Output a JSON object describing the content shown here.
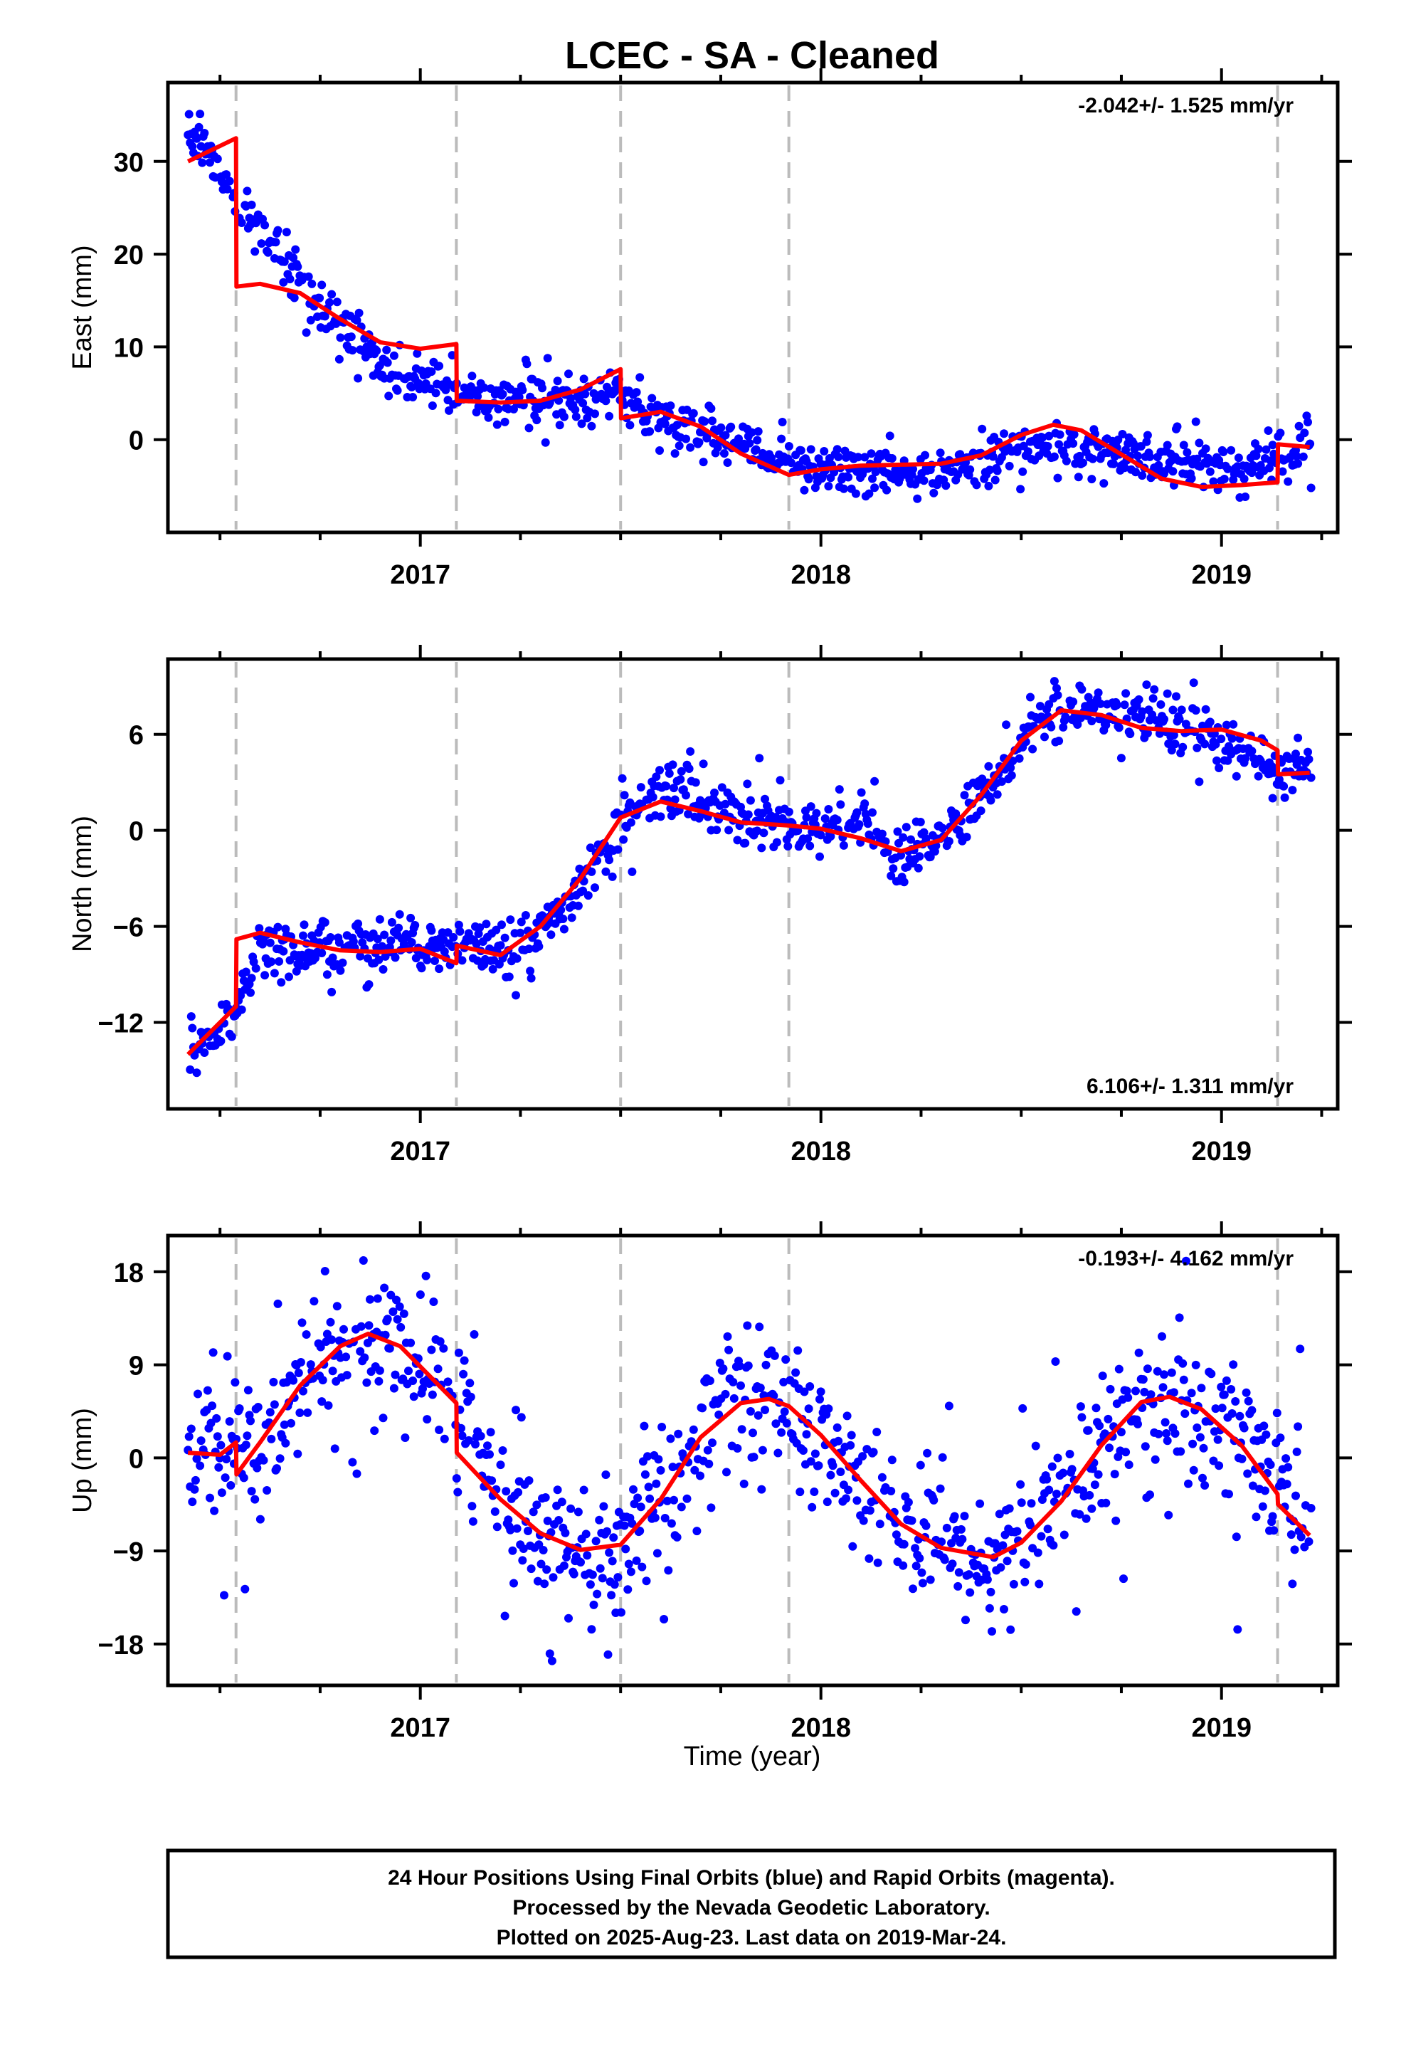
{
  "title": "LCEC  - SA - Cleaned",
  "xlabel": "Time (year)",
  "footer": {
    "lines": [
      "24 Hour Positions Using Final Orbits (blue) and Rapid Orbits (magenta).",
      "Processed by the Nevada Geodetic Laboratory.",
      "Plotted on 2025-Aug-23. Last data on 2019-Mar-24."
    ]
  },
  "colors": {
    "points": "#0000ff",
    "model": "#ff0000",
    "steps": "#bbbbbb",
    "axes": "#000000"
  },
  "chart_data": [
    {
      "type": "scatter",
      "ylabel": "East (mm)",
      "rate": "-2.042+/- 1.525 mm/yr",
      "rate_position": "top-right",
      "xlim": [
        2016.37,
        2019.29
      ],
      "ylim": [
        -10,
        38.5
      ],
      "xticks": [
        2017,
        2018,
        2019
      ],
      "yticks": [
        0,
        10,
        20,
        30
      ],
      "step_epochs": [
        2016.54,
        2017.09,
        2017.5,
        2017.92,
        2019.14
      ],
      "model": {
        "x": [
          2016.42,
          2016.54,
          2016.541,
          2016.6,
          2016.7,
          2016.8,
          2016.9,
          2017.0,
          2017.09,
          2017.091,
          2017.2,
          2017.3,
          2017.4,
          2017.5,
          2017.501,
          2017.6,
          2017.7,
          2017.8,
          2017.92,
          2018.0,
          2018.1,
          2018.2,
          2018.3,
          2018.4,
          2018.5,
          2018.58,
          2018.65,
          2018.75,
          2018.85,
          2018.95,
          2019.05,
          2019.14,
          2019.141,
          2019.22
        ],
        "y": [
          30,
          32.5,
          16.5,
          16.8,
          15.8,
          13,
          10.5,
          9.8,
          10.3,
          4.2,
          4.0,
          4.2,
          5.4,
          7.6,
          2.3,
          3.0,
          1.4,
          -1.5,
          -3.8,
          -3.2,
          -2.8,
          -2.7,
          -2.6,
          -1.7,
          0.5,
          1.6,
          1.0,
          -1.6,
          -4.2,
          -5.1,
          -4.9,
          -4.6,
          -0.5,
          -0.8
        ]
      },
      "trend": {
        "x": [
          2016.42,
          2016.54,
          2016.7,
          2016.9,
          2017.09,
          2017.2,
          2017.35,
          2017.5,
          2017.6,
          2017.75,
          2017.92,
          2018.1,
          2018.3,
          2018.45,
          2018.6,
          2018.75,
          2018.9,
          2019.05,
          2019.14,
          2019.22
        ],
        "y": [
          34,
          26,
          17,
          8,
          5,
          4.2,
          4.0,
          4.5,
          2.2,
          0.5,
          -2.5,
          -3.5,
          -3.3,
          -1.6,
          -0.6,
          -1.6,
          -2.6,
          -3.2,
          -2.2,
          -0.4
        ]
      },
      "scatter": {
        "spread": 1.3,
        "outlier_frac": 0.01,
        "seed": 11
      }
    },
    {
      "type": "scatter",
      "ylabel": "North (mm)",
      "rate": "6.106+/- 1.311 mm/yr",
      "rate_position": "bottom-right",
      "xlim": [
        2016.37,
        2019.29
      ],
      "ylim": [
        -17.4,
        10.7
      ],
      "xticks": [
        2017,
        2018,
        2019
      ],
      "yticks": [
        -12,
        -6,
        0,
        6
      ],
      "step_epochs": [
        2016.54,
        2017.09,
        2017.5,
        2017.92,
        2019.14
      ],
      "model": {
        "x": [
          2016.42,
          2016.54,
          2016.541,
          2016.6,
          2016.7,
          2016.8,
          2016.9,
          2017.0,
          2017.09,
          2017.091,
          2017.2,
          2017.3,
          2017.4,
          2017.5,
          2017.6,
          2017.7,
          2017.8,
          2017.92,
          2018.0,
          2018.1,
          2018.2,
          2018.3,
          2018.4,
          2018.5,
          2018.6,
          2018.7,
          2018.8,
          2018.9,
          2019.0,
          2019.1,
          2019.14,
          2019.141,
          2019.22
        ],
        "y": [
          -14,
          -11,
          -6.8,
          -6.4,
          -7.0,
          -7.5,
          -7.6,
          -7.4,
          -8.3,
          -7.2,
          -7.8,
          -6.0,
          -3.0,
          0.8,
          1.8,
          1.2,
          0.5,
          0.3,
          0.1,
          -0.5,
          -1.3,
          -0.6,
          2.2,
          5.6,
          7.5,
          7.2,
          6.4,
          6.2,
          6.3,
          5.6,
          5.0,
          3.5,
          3.6
        ]
      },
      "trend": {
        "x": [
          2016.42,
          2016.54,
          2016.6,
          2016.8,
          2017.0,
          2017.09,
          2017.2,
          2017.3,
          2017.4,
          2017.5,
          2017.6,
          2017.8,
          2017.95,
          2018.1,
          2018.2,
          2018.3,
          2018.45,
          2018.55,
          2018.7,
          2018.9,
          2019.0,
          2019.14,
          2019.22
        ],
        "y": [
          -14.5,
          -11.5,
          -7.2,
          -7.6,
          -7.2,
          -7.0,
          -7.8,
          -6.5,
          -3.8,
          0,
          2.8,
          0.8,
          0.3,
          0.6,
          -1.8,
          -0.8,
          3.8,
          7.2,
          7.6,
          6.2,
          5.6,
          3.8,
          4.0
        ]
      },
      "scatter": {
        "spread": 0.85,
        "outlier_frac": 0.01,
        "seed": 23
      }
    },
    {
      "type": "scatter",
      "ylabel": "Up (mm)",
      "rate": "-0.193+/- 4.162 mm/yr",
      "rate_position": "top-right",
      "xlim": [
        2016.37,
        2019.29
      ],
      "ylim": [
        -22,
        21.5
      ],
      "xticks": [
        2017,
        2018,
        2019
      ],
      "yticks": [
        -18,
        -9,
        0,
        9,
        18
      ],
      "step_epochs": [
        2016.54,
        2017.09,
        2017.5,
        2017.92,
        2019.14
      ],
      "model": {
        "x": [
          2016.42,
          2016.5,
          2016.54,
          2016.541,
          2016.6,
          2016.7,
          2016.8,
          2016.87,
          2016.95,
          2017.09,
          2017.091,
          2017.2,
          2017.3,
          2017.4,
          2017.5,
          2017.6,
          2017.7,
          2017.8,
          2017.87,
          2017.92,
          2018.0,
          2018.1,
          2018.2,
          2018.3,
          2018.43,
          2018.5,
          2018.6,
          2018.7,
          2018.8,
          2018.87,
          2018.95,
          2019.05,
          2019.14,
          2019.141,
          2019.22
        ],
        "y": [
          0.5,
          0.3,
          1.5,
          -1.6,
          1.5,
          7,
          10.8,
          12,
          10.8,
          5.3,
          0.5,
          -4,
          -7.3,
          -8.9,
          -8.4,
          -4,
          2,
          5.3,
          5.7,
          5.0,
          2.2,
          -2.2,
          -6.4,
          -8.7,
          -9.6,
          -8.2,
          -4.2,
          1.2,
          5.4,
          5.9,
          4.7,
          1.2,
          -3.5,
          -4.5,
          -7.5
        ]
      },
      "trend": {
        "x": [
          2016.42,
          2016.5,
          2016.54,
          2016.6,
          2016.7,
          2016.8,
          2016.87,
          2016.95,
          2017.09,
          2017.2,
          2017.3,
          2017.4,
          2017.5,
          2017.6,
          2017.7,
          2017.8,
          2017.87,
          2017.92,
          2018.0,
          2018.1,
          2018.2,
          2018.3,
          2018.43,
          2018.5,
          2018.6,
          2018.7,
          2018.8,
          2018.87,
          2018.95,
          2019.05,
          2019.14,
          2019.22
        ],
        "y": [
          0.5,
          0.3,
          1.5,
          1.5,
          7,
          10.8,
          12,
          10.8,
          5.3,
          -4,
          -7.3,
          -8.9,
          -8.4,
          -4,
          2,
          5.3,
          5.7,
          5.0,
          2.2,
          -2.2,
          -6.4,
          -8.7,
          -9.6,
          -8.2,
          -4.2,
          1.2,
          5.4,
          5.9,
          4.7,
          1.2,
          -3.5,
          -7.5
        ]
      },
      "scatter": {
        "spread": 3.4,
        "outlier_frac": 0.03,
        "seed": 37
      }
    }
  ]
}
